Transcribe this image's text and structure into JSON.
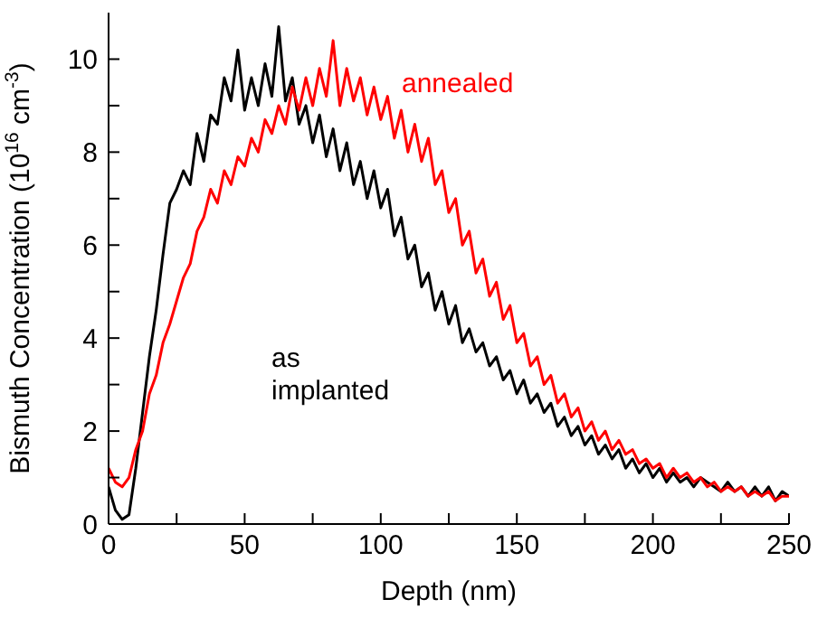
{
  "chart_data": {
    "type": "line",
    "xlabel": "Depth (nm)",
    "ylabel": "Bismuth Concentration (10$^{16}$ cm$^{-3}$)",
    "x": [
      0,
      2.5,
      5,
      7.5,
      10,
      12.5,
      15,
      17.5,
      20,
      22.5,
      25,
      27.5,
      30,
      32.5,
      35,
      37.5,
      40,
      42.5,
      45,
      47.5,
      50,
      52.5,
      55,
      57.5,
      60,
      62.5,
      65,
      67.5,
      70,
      72.5,
      75,
      77.5,
      80,
      82.5,
      85,
      87.5,
      90,
      92.5,
      95,
      97.5,
      100,
      102.5,
      105,
      107.5,
      110,
      112.5,
      115,
      117.5,
      120,
      122.5,
      125,
      127.5,
      130,
      132.5,
      135,
      137.5,
      140,
      142.5,
      145,
      147.5,
      150,
      152.5,
      155,
      157.5,
      160,
      162.5,
      165,
      167.5,
      170,
      172.5,
      175,
      177.5,
      180,
      182.5,
      185,
      187.5,
      190,
      192.5,
      195,
      197.5,
      200,
      202.5,
      205,
      207.5,
      210,
      212.5,
      215,
      217.5,
      220,
      222.5,
      225,
      227.5,
      230,
      232.5,
      235,
      237.5,
      240,
      242.5,
      245,
      247.5,
      250
    ],
    "series": [
      {
        "name": "as implanted",
        "color": "#000000",
        "values": [
          0.8,
          0.3,
          0.1,
          0.2,
          1.2,
          2.4,
          3.6,
          4.6,
          5.8,
          6.9,
          7.2,
          7.6,
          7.3,
          8.4,
          7.8,
          8.8,
          8.6,
          9.6,
          9.1,
          10.2,
          8.9,
          9.6,
          9.0,
          9.9,
          9.2,
          10.7,
          9.1,
          9.6,
          8.6,
          9.0,
          8.2,
          8.8,
          7.9,
          8.5,
          7.6,
          8.2,
          7.3,
          7.8,
          7.0,
          7.6,
          6.8,
          7.2,
          6.2,
          6.6,
          5.7,
          6.0,
          5.1,
          5.4,
          4.6,
          5.0,
          4.3,
          4.7,
          3.9,
          4.2,
          3.7,
          3.9,
          3.4,
          3.6,
          3.1,
          3.3,
          2.8,
          3.1,
          2.6,
          2.8,
          2.4,
          2.6,
          2.1,
          2.3,
          1.9,
          2.1,
          1.7,
          1.9,
          1.5,
          1.7,
          1.4,
          1.6,
          1.2,
          1.4,
          1.1,
          1.3,
          1.0,
          1.2,
          0.9,
          1.1,
          0.9,
          1.0,
          0.8,
          1.0,
          0.9,
          0.8,
          0.7,
          0.9,
          0.7,
          0.8,
          0.6,
          0.8,
          0.6,
          0.8,
          0.5,
          0.7,
          0.6
        ]
      },
      {
        "name": "annealed",
        "color": "#ff0000",
        "values": [
          1.2,
          0.9,
          0.8,
          1.0,
          1.6,
          2.0,
          2.8,
          3.2,
          3.9,
          4.3,
          4.8,
          5.3,
          5.6,
          6.3,
          6.6,
          7.2,
          6.9,
          7.6,
          7.3,
          7.9,
          7.7,
          8.3,
          8.0,
          8.7,
          8.4,
          9.0,
          8.6,
          9.4,
          8.9,
          9.6,
          9.0,
          9.8,
          9.2,
          10.4,
          9.0,
          9.8,
          9.1,
          9.6,
          8.8,
          9.4,
          8.7,
          9.2,
          8.3,
          8.9,
          8.0,
          8.6,
          7.8,
          8.3,
          7.3,
          7.6,
          6.7,
          7.0,
          6.0,
          6.3,
          5.4,
          5.7,
          4.9,
          5.2,
          4.4,
          4.7,
          3.9,
          4.1,
          3.4,
          3.6,
          3.0,
          3.2,
          2.6,
          2.8,
          2.3,
          2.5,
          2.0,
          2.2,
          1.8,
          2.0,
          1.6,
          1.8,
          1.5,
          1.6,
          1.3,
          1.4,
          1.2,
          1.3,
          1.0,
          1.2,
          1.0,
          1.1,
          0.9,
          1.0,
          0.8,
          0.9,
          0.7,
          0.8,
          0.7,
          0.8,
          0.6,
          0.7,
          0.6,
          0.7,
          0.5,
          0.6,
          0.6
        ]
      }
    ],
    "xlim": [
      0,
      250
    ],
    "xticks": [
      0,
      {
        "value": 25,
        "label": null
      },
      50,
      {
        "value": 75,
        "label": null
      },
      100,
      {
        "value": 125,
        "label": null
      },
      150,
      {
        "value": 175,
        "label": null
      },
      200,
      {
        "value": 225,
        "label": null
      },
      250
    ],
    "ylim": [
      0,
      11
    ],
    "yticks": [
      0,
      {
        "value": 1,
        "label": null
      },
      2,
      {
        "value": 3,
        "label": null
      },
      4,
      {
        "value": 5,
        "label": null
      },
      6,
      {
        "value": 7,
        "label": null
      },
      8,
      {
        "value": 9,
        "label": null
      },
      10
    ],
    "legend": false,
    "grid": false,
    "marker": "none",
    "line_style": "solid"
  }
}
